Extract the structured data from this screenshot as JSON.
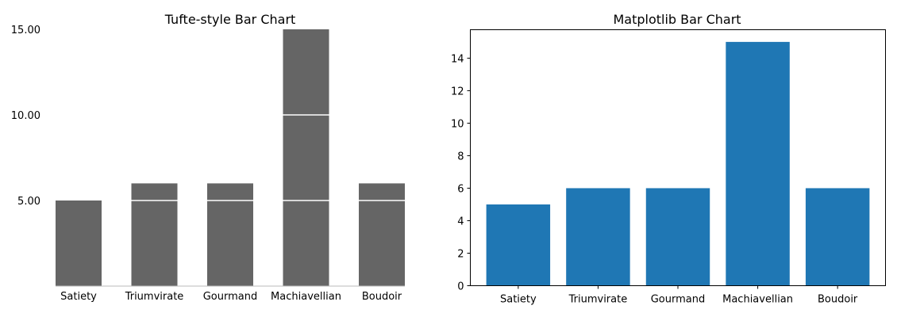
{
  "chart_data": [
    {
      "type": "bar",
      "title": "Tufte-style Bar Chart",
      "categories": [
        "Satiety",
        "Triumvirate",
        "Gourmand",
        "Machiavellian",
        "Boudoir"
      ],
      "values": [
        5,
        6,
        6,
        15,
        6
      ],
      "ylim": [
        0,
        15
      ],
      "yticks": [
        5,
        10,
        15
      ],
      "ytick_labels": [
        "5.00",
        "10.00",
        "15.00"
      ],
      "bar_color": "#656565",
      "gridline_color": "#ffffff",
      "grid": false
    },
    {
      "type": "bar",
      "title": "Matplotlib Bar Chart",
      "categories": [
        "Satiety",
        "Triumvirate",
        "Gourmand",
        "Machiavellian",
        "Boudoir"
      ],
      "values": [
        5,
        6,
        6,
        15,
        6
      ],
      "ylim": [
        0,
        15.75
      ],
      "yticks": [
        0,
        2,
        4,
        6,
        8,
        10,
        12,
        14
      ],
      "ytick_labels": [
        "0",
        "2",
        "4",
        "6",
        "8",
        "10",
        "12",
        "14"
      ],
      "bar_color": "#1f77b4",
      "grid": false
    }
  ]
}
